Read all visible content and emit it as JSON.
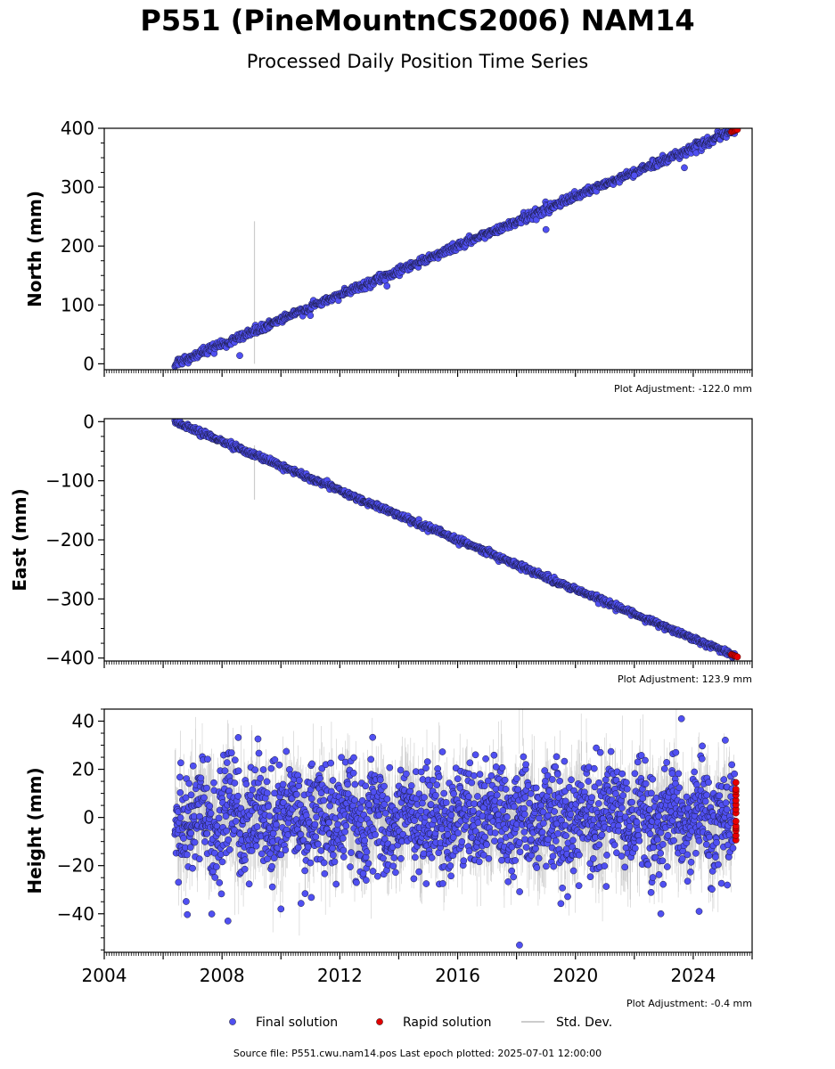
{
  "title": "P551 (PineMountnCS2006) NAM14",
  "subtitle": "Processed Daily Position Time Series",
  "source_line": "Source file: P551.cwu.nam14.pos  Last epoch plotted: 2025-07-01 12:00:00",
  "legend": [
    {
      "label": "Final solution",
      "marker": "circle",
      "color": "#4f4ff0"
    },
    {
      "label": "Rapid solution",
      "marker": "circle",
      "color": "#e00000"
    },
    {
      "label": "Std. Dev.",
      "marker": "line",
      "color": "#cccccc"
    }
  ],
  "colors": {
    "final": "#5050f2",
    "rapid": "#e60000",
    "stddev": "#999999",
    "edge": "#1a1a40"
  },
  "chart_data": [
    {
      "type": "scatter",
      "ylabel": "North (mm)",
      "ylim": [
        -10,
        400
      ],
      "yticks": [
        0,
        100,
        200,
        300,
        400
      ],
      "xlim": [
        2004,
        2026
      ],
      "xtick_labels": [],
      "adjustment": "Plot Adjustment: -122.0 mm",
      "series": [
        {
          "name": "Final solution",
          "trend": {
            "start": [
              2006.4,
              0
            ],
            "end": [
              2025.4,
              396
            ]
          },
          "noise_sd": 3.5,
          "outliers": [
            [
              2008.6,
              14
            ],
            [
              2011.0,
              82
            ],
            [
              2013.6,
              132
            ],
            [
              2019.0,
              228
            ],
            [
              2022.0,
              320
            ],
            [
              2023.7,
              333
            ]
          ]
        },
        {
          "name": "Rapid solution",
          "trend": {
            "start": [
              2025.3,
              394
            ],
            "end": [
              2025.5,
              398
            ]
          }
        }
      ],
      "stddev_spike": {
        "x": 2009.1,
        "y_range": [
          0,
          242
        ]
      }
    },
    {
      "type": "scatter",
      "ylabel": "East (mm)",
      "ylim": [
        -405,
        5
      ],
      "yticks": [
        -400,
        -300,
        -200,
        -100,
        0
      ],
      "xlim": [
        2004,
        2026
      ],
      "xtick_labels": [],
      "adjustment": "Plot Adjustment: 123.9 mm",
      "series": [
        {
          "name": "Final solution",
          "trend": {
            "start": [
              2006.4,
              0
            ],
            "end": [
              2025.4,
              -396
            ]
          },
          "noise_sd": 2.5,
          "outliers": []
        },
        {
          "name": "Rapid solution",
          "trend": {
            "start": [
              2025.3,
              -394
            ],
            "end": [
              2025.5,
              -398
            ]
          }
        }
      ],
      "stddev_spike": {
        "x": 2009.1,
        "y_range": [
          -132,
          -40
        ]
      }
    },
    {
      "type": "scatter",
      "ylabel": "Height (mm)",
      "ylim": [
        -56,
        45
      ],
      "yticks": [
        -40,
        -20,
        0,
        20,
        40
      ],
      "xlim": [
        2004,
        2026
      ],
      "xtick_labels": [
        "2004",
        "2008",
        "2012",
        "2016",
        "2020",
        "2024"
      ],
      "xtick_values": [
        2004,
        2008,
        2012,
        2016,
        2020,
        2024
      ],
      "adjustment": "Plot Adjustment: -0.4 mm",
      "series": [
        {
          "name": "Final solution",
          "trend": {
            "start": [
              2006.4,
              0
            ],
            "end": [
              2025.4,
              0
            ]
          },
          "noise_sd": 11,
          "outliers": [
            [
              2018.1,
              -53
            ],
            [
              2023.6,
              41
            ],
            [
              2008.2,
              -43
            ],
            [
              2022.9,
              -40
            ],
            [
              2024.2,
              -39
            ],
            [
              2010.0,
              -38
            ]
          ]
        },
        {
          "name": "Rapid solution",
          "values_range": [
            -10,
            14
          ],
          "x": 2025.45
        }
      ]
    }
  ]
}
